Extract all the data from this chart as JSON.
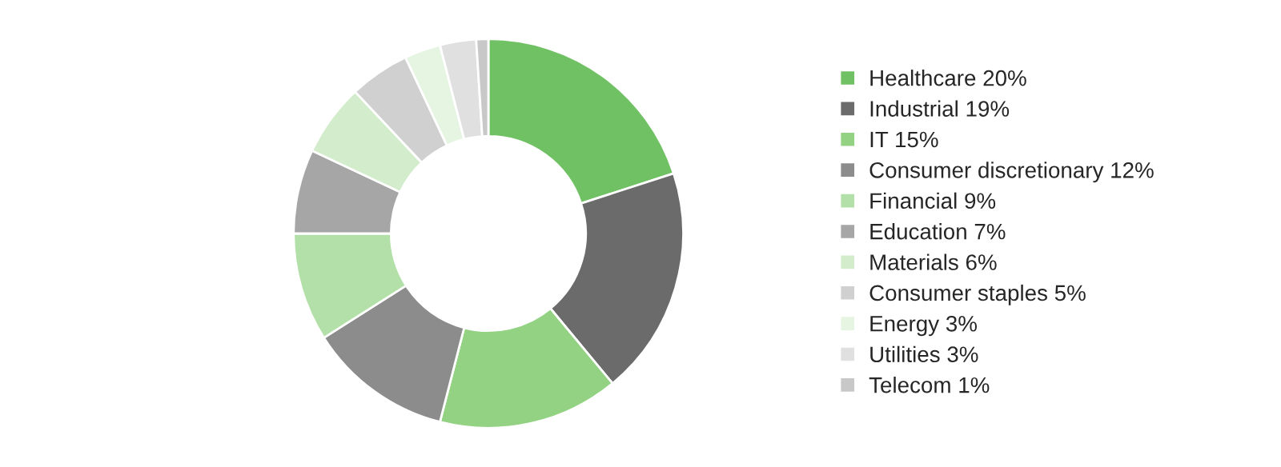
{
  "chart_data": {
    "type": "donut",
    "categories": [
      "Healthcare 20%",
      "Industrial 19%",
      "IT 15%",
      "Consumer discretionary 12%",
      "Financial 9%",
      "Education 7%",
      "Materials 6%",
      "Consumer staples 5%",
      "Energy 3%",
      "Utilities 3%",
      "Telecom 1%"
    ],
    "values": [
      20,
      19,
      15,
      12,
      9,
      7,
      6,
      5,
      3,
      3,
      1
    ],
    "colors": [
      "#70c163",
      "#6b6b6b",
      "#92d282",
      "#8c8c8c",
      "#b3e0a8",
      "#a6a6a6",
      "#d3edcc",
      "#d0d0d0",
      "#e6f5e2",
      "#e0e0e0",
      "#c8c8c8"
    ],
    "legend": "right"
  }
}
